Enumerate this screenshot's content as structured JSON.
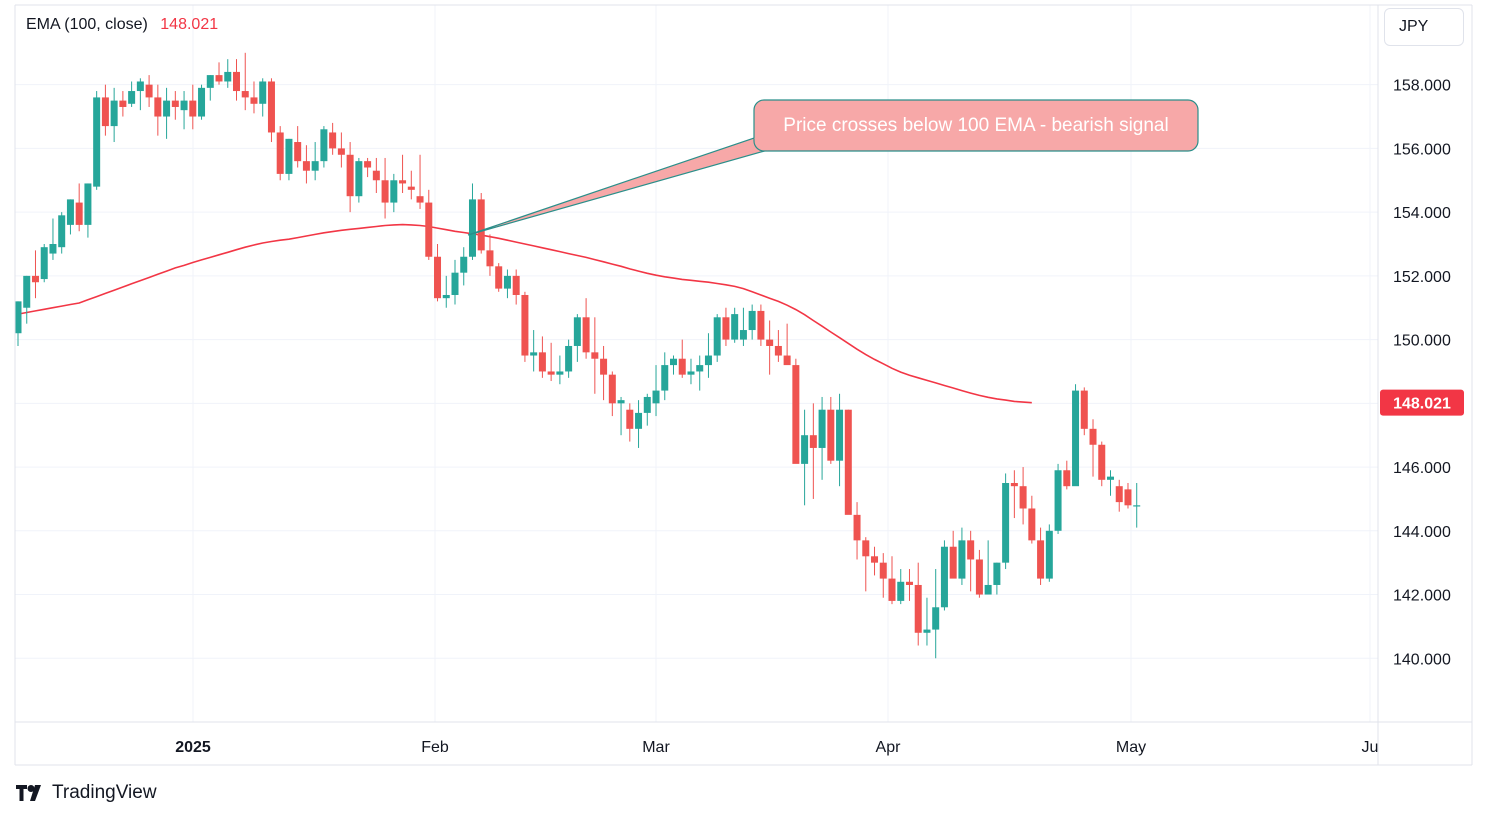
{
  "legend": {
    "indicator": "EMA (100, close)",
    "value": "148.021"
  },
  "currency_button": "JPY",
  "brand": "TradingView",
  "colors": {
    "up": "#26a69a",
    "down": "#ef5350",
    "ema": "#f23645",
    "callout_fill": "#f7a8a8",
    "callout_border": "#2a8f8a"
  },
  "annotation": {
    "text": "Price crosses below 100 EMA - bearish signal"
  },
  "chart_data": {
    "type": "candlestick",
    "y_axis": {
      "range": [
        138.0,
        160.5
      ],
      "ticks": [
        "140.000",
        "142.000",
        "144.000",
        "146.000",
        "148.000",
        "150.000",
        "152.000",
        "154.000",
        "156.000",
        "158.000"
      ],
      "position": "right"
    },
    "x_axis": {
      "tick_labels": [
        "2025",
        "Feb",
        "Mar",
        "Apr",
        "May",
        "Ju"
      ]
    },
    "last_value_label": {
      "value": "148.021",
      "price": 148.021
    },
    "candles": [
      [
        150.2,
        151.2,
        149.8,
        151.2
      ],
      [
        151.0,
        152.0,
        150.5,
        152.0
      ],
      [
        152.0,
        152.8,
        151.3,
        151.8
      ],
      [
        151.9,
        153.0,
        151.8,
        152.9
      ],
      [
        152.7,
        153.8,
        152.5,
        153.0
      ],
      [
        152.9,
        154.0,
        152.7,
        153.9
      ],
      [
        153.6,
        154.4,
        153.3,
        154.4
      ],
      [
        154.3,
        154.9,
        153.4,
        153.6
      ],
      [
        153.6,
        154.9,
        153.2,
        154.9
      ],
      [
        154.8,
        157.8,
        154.7,
        157.6
      ],
      [
        157.6,
        158.0,
        156.4,
        156.7
      ],
      [
        156.7,
        157.9,
        156.2,
        157.5
      ],
      [
        157.5,
        157.8,
        157.0,
        157.3
      ],
      [
        157.4,
        158.1,
        157.3,
        157.8
      ],
      [
        157.8,
        158.2,
        157.2,
        158.1
      ],
      [
        158.0,
        158.3,
        157.3,
        157.6
      ],
      [
        157.6,
        158.0,
        156.4,
        157.0
      ],
      [
        157.0,
        157.9,
        156.3,
        157.5
      ],
      [
        157.5,
        157.8,
        156.9,
        157.3
      ],
      [
        157.2,
        157.8,
        156.6,
        157.5
      ],
      [
        157.5,
        158.0,
        156.6,
        157.0
      ],
      [
        157.0,
        158.0,
        156.9,
        157.9
      ],
      [
        157.9,
        158.3,
        157.5,
        158.3
      ],
      [
        158.3,
        158.7,
        158.0,
        158.1
      ],
      [
        158.1,
        158.8,
        157.9,
        158.4
      ],
      [
        158.4,
        158.8,
        157.5,
        157.8
      ],
      [
        157.8,
        159.0,
        157.2,
        157.6
      ],
      [
        157.6,
        158.1,
        157.1,
        157.4
      ],
      [
        157.4,
        158.2,
        157.0,
        158.1
      ],
      [
        158.1,
        158.2,
        156.2,
        156.5
      ],
      [
        156.5,
        156.7,
        155.0,
        155.2
      ],
      [
        155.2,
        156.3,
        155.0,
        156.3
      ],
      [
        156.2,
        156.7,
        155.4,
        155.6
      ],
      [
        155.6,
        156.1,
        154.9,
        155.3
      ],
      [
        155.3,
        156.2,
        155.0,
        155.6
      ],
      [
        155.6,
        156.7,
        155.4,
        156.6
      ],
      [
        156.5,
        156.8,
        155.8,
        156.0
      ],
      [
        156.0,
        156.5,
        155.4,
        155.8
      ],
      [
        155.8,
        156.2,
        154.0,
        154.5
      ],
      [
        154.5,
        155.7,
        154.3,
        155.6
      ],
      [
        155.6,
        155.7,
        155.1,
        155.4
      ],
      [
        155.3,
        155.7,
        154.6,
        155.0
      ],
      [
        155.0,
        155.7,
        153.8,
        154.3
      ],
      [
        154.3,
        155.2,
        154.0,
        155.0
      ],
      [
        155.0,
        155.8,
        154.6,
        154.9
      ],
      [
        154.8,
        155.3,
        154.4,
        154.7
      ],
      [
        154.5,
        155.8,
        154.1,
        154.3
      ],
      [
        154.3,
        154.7,
        152.5,
        152.6
      ],
      [
        152.6,
        153.0,
        151.2,
        151.3
      ],
      [
        151.3,
        152.0,
        151.0,
        151.4
      ],
      [
        151.4,
        152.5,
        151.1,
        152.1
      ],
      [
        152.1,
        152.9,
        151.7,
        152.6
      ],
      [
        152.6,
        154.9,
        152.5,
        154.4
      ],
      [
        154.4,
        154.6,
        152.7,
        152.8
      ],
      [
        152.8,
        153.3,
        152.0,
        152.3
      ],
      [
        152.3,
        152.4,
        151.5,
        151.6
      ],
      [
        151.6,
        152.2,
        151.3,
        152.0
      ],
      [
        152.0,
        152.2,
        151.1,
        151.4
      ],
      [
        151.4,
        151.5,
        149.3,
        149.5
      ],
      [
        149.5,
        150.3,
        149.0,
        149.6
      ],
      [
        149.6,
        150.1,
        148.8,
        149.0
      ],
      [
        149.0,
        149.9,
        148.7,
        148.9
      ],
      [
        148.9,
        149.5,
        148.6,
        149.0
      ],
      [
        149.0,
        150.0,
        148.8,
        149.8
      ],
      [
        149.8,
        150.8,
        149.3,
        150.7
      ],
      [
        150.7,
        151.3,
        149.4,
        149.6
      ],
      [
        149.6,
        150.7,
        148.3,
        149.4
      ],
      [
        149.4,
        149.8,
        148.1,
        148.9
      ],
      [
        148.9,
        149.0,
        147.6,
        148.0
      ],
      [
        148.0,
        148.2,
        147.0,
        148.1
      ],
      [
        147.8,
        148.0,
        146.8,
        147.2
      ],
      [
        147.2,
        148.1,
        146.6,
        147.7
      ],
      [
        147.7,
        148.3,
        147.3,
        148.2
      ],
      [
        148.0,
        149.2,
        147.6,
        148.4
      ],
      [
        148.4,
        149.6,
        148.1,
        149.2
      ],
      [
        149.2,
        149.5,
        148.9,
        149.4
      ],
      [
        149.4,
        150.0,
        148.8,
        148.9
      ],
      [
        148.9,
        149.4,
        148.6,
        149.0
      ],
      [
        149.0,
        149.5,
        148.4,
        149.2
      ],
      [
        149.2,
        150.2,
        148.8,
        149.5
      ],
      [
        149.5,
        150.8,
        149.3,
        150.7
      ],
      [
        150.7,
        151.0,
        149.8,
        150.0
      ],
      [
        150.0,
        151.0,
        149.9,
        150.8
      ],
      [
        150.0,
        151.0,
        149.8,
        150.3
      ],
      [
        150.3,
        151.1,
        150.0,
        150.9
      ],
      [
        150.9,
        151.1,
        149.8,
        150.0
      ],
      [
        150.0,
        150.6,
        148.9,
        149.8
      ],
      [
        149.8,
        150.3,
        149.3,
        149.5
      ],
      [
        149.5,
        150.5,
        149.3,
        149.2
      ],
      [
        149.2,
        149.4,
        146.2,
        146.1
      ],
      [
        146.1,
        147.8,
        144.8,
        147.0
      ],
      [
        147.0,
        148.0,
        145.0,
        146.6
      ],
      [
        146.6,
        148.2,
        145.6,
        147.8
      ],
      [
        147.8,
        148.2,
        146.1,
        146.2
      ],
      [
        146.2,
        148.3,
        145.4,
        147.8
      ],
      [
        147.8,
        147.8,
        144.6,
        144.5
      ],
      [
        144.5,
        144.9,
        143.1,
        143.7
      ],
      [
        143.7,
        143.8,
        142.1,
        143.2
      ],
      [
        143.2,
        143.5,
        142.6,
        143.0
      ],
      [
        143.0,
        143.3,
        141.9,
        142.5
      ],
      [
        142.5,
        143.2,
        141.7,
        141.8
      ],
      [
        141.8,
        142.8,
        141.7,
        142.4
      ],
      [
        142.4,
        142.8,
        141.8,
        142.3
      ],
      [
        142.3,
        143.0,
        140.4,
        140.8
      ],
      [
        140.8,
        141.9,
        140.4,
        140.9
      ],
      [
        140.9,
        142.8,
        140.0,
        141.6
      ],
      [
        141.6,
        143.7,
        141.5,
        143.5
      ],
      [
        143.5,
        144.0,
        142.6,
        142.5
      ],
      [
        142.5,
        144.1,
        142.3,
        143.7
      ],
      [
        143.7,
        144.0,
        142.1,
        143.1
      ],
      [
        143.1,
        143.4,
        141.9,
        142.0
      ],
      [
        142.0,
        143.7,
        142.1,
        142.3
      ],
      [
        142.3,
        143.0,
        142.0,
        143.0
      ],
      [
        143.0,
        145.8,
        142.8,
        145.5
      ],
      [
        145.5,
        145.9,
        144.4,
        145.4
      ],
      [
        145.4,
        146.0,
        144.2,
        144.7
      ],
      [
        144.7,
        145.1,
        143.6,
        143.7
      ],
      [
        143.7,
        144.1,
        142.3,
        142.5
      ],
      [
        142.5,
        144.2,
        142.4,
        144.0
      ],
      [
        144.0,
        146.1,
        143.9,
        145.9
      ],
      [
        145.9,
        146.2,
        145.3,
        145.4
      ],
      [
        145.4,
        148.6,
        145.5,
        148.4
      ],
      [
        148.4,
        148.5,
        147.0,
        147.2
      ],
      [
        147.2,
        147.5,
        145.7,
        146.7
      ],
      [
        146.7,
        146.8,
        145.4,
        145.6
      ],
      [
        145.6,
        145.9,
        145.1,
        145.7
      ],
      [
        145.4,
        145.6,
        144.6,
        144.9
      ],
      [
        145.3,
        145.5,
        144.7,
        144.8
      ],
      [
        144.8,
        145.5,
        144.1,
        144.8
      ]
    ],
    "ema": {
      "name": "EMA (100, close)",
      "values": [
        150.8,
        150.85,
        150.9,
        150.95,
        151.0,
        151.05,
        151.1,
        151.15,
        151.25,
        151.35,
        151.45,
        151.55,
        151.65,
        151.75,
        151.85,
        151.95,
        152.05,
        152.15,
        152.25,
        152.33,
        152.42,
        152.5,
        152.58,
        152.66,
        152.74,
        152.82,
        152.9,
        152.97,
        153.03,
        153.08,
        153.12,
        153.15,
        153.2,
        153.25,
        153.3,
        153.35,
        153.39,
        153.43,
        153.46,
        153.49,
        153.52,
        153.55,
        153.58,
        153.6,
        153.61,
        153.6,
        153.58,
        153.55,
        153.5,
        153.45,
        153.4,
        153.36,
        153.32,
        153.28,
        153.23,
        153.18,
        153.12,
        153.06,
        153.0,
        152.94,
        152.88,
        152.82,
        152.76,
        152.7,
        152.64,
        152.58,
        152.51,
        152.44,
        152.37,
        152.3,
        152.22,
        152.15,
        152.08,
        152.02,
        151.97,
        151.93,
        151.89,
        151.86,
        151.83,
        151.8,
        151.76,
        151.72,
        151.67,
        151.6,
        151.5,
        151.4,
        151.3,
        151.2,
        151.08,
        150.94,
        150.78,
        150.6,
        150.42,
        150.24,
        150.06,
        149.88,
        149.7,
        149.53,
        149.38,
        149.24,
        149.1,
        148.98,
        148.88,
        148.8,
        148.72,
        148.64,
        148.56,
        148.48,
        148.4,
        148.32,
        148.25,
        148.19,
        148.14,
        148.1,
        148.06,
        148.04,
        148.021
      ]
    }
  }
}
